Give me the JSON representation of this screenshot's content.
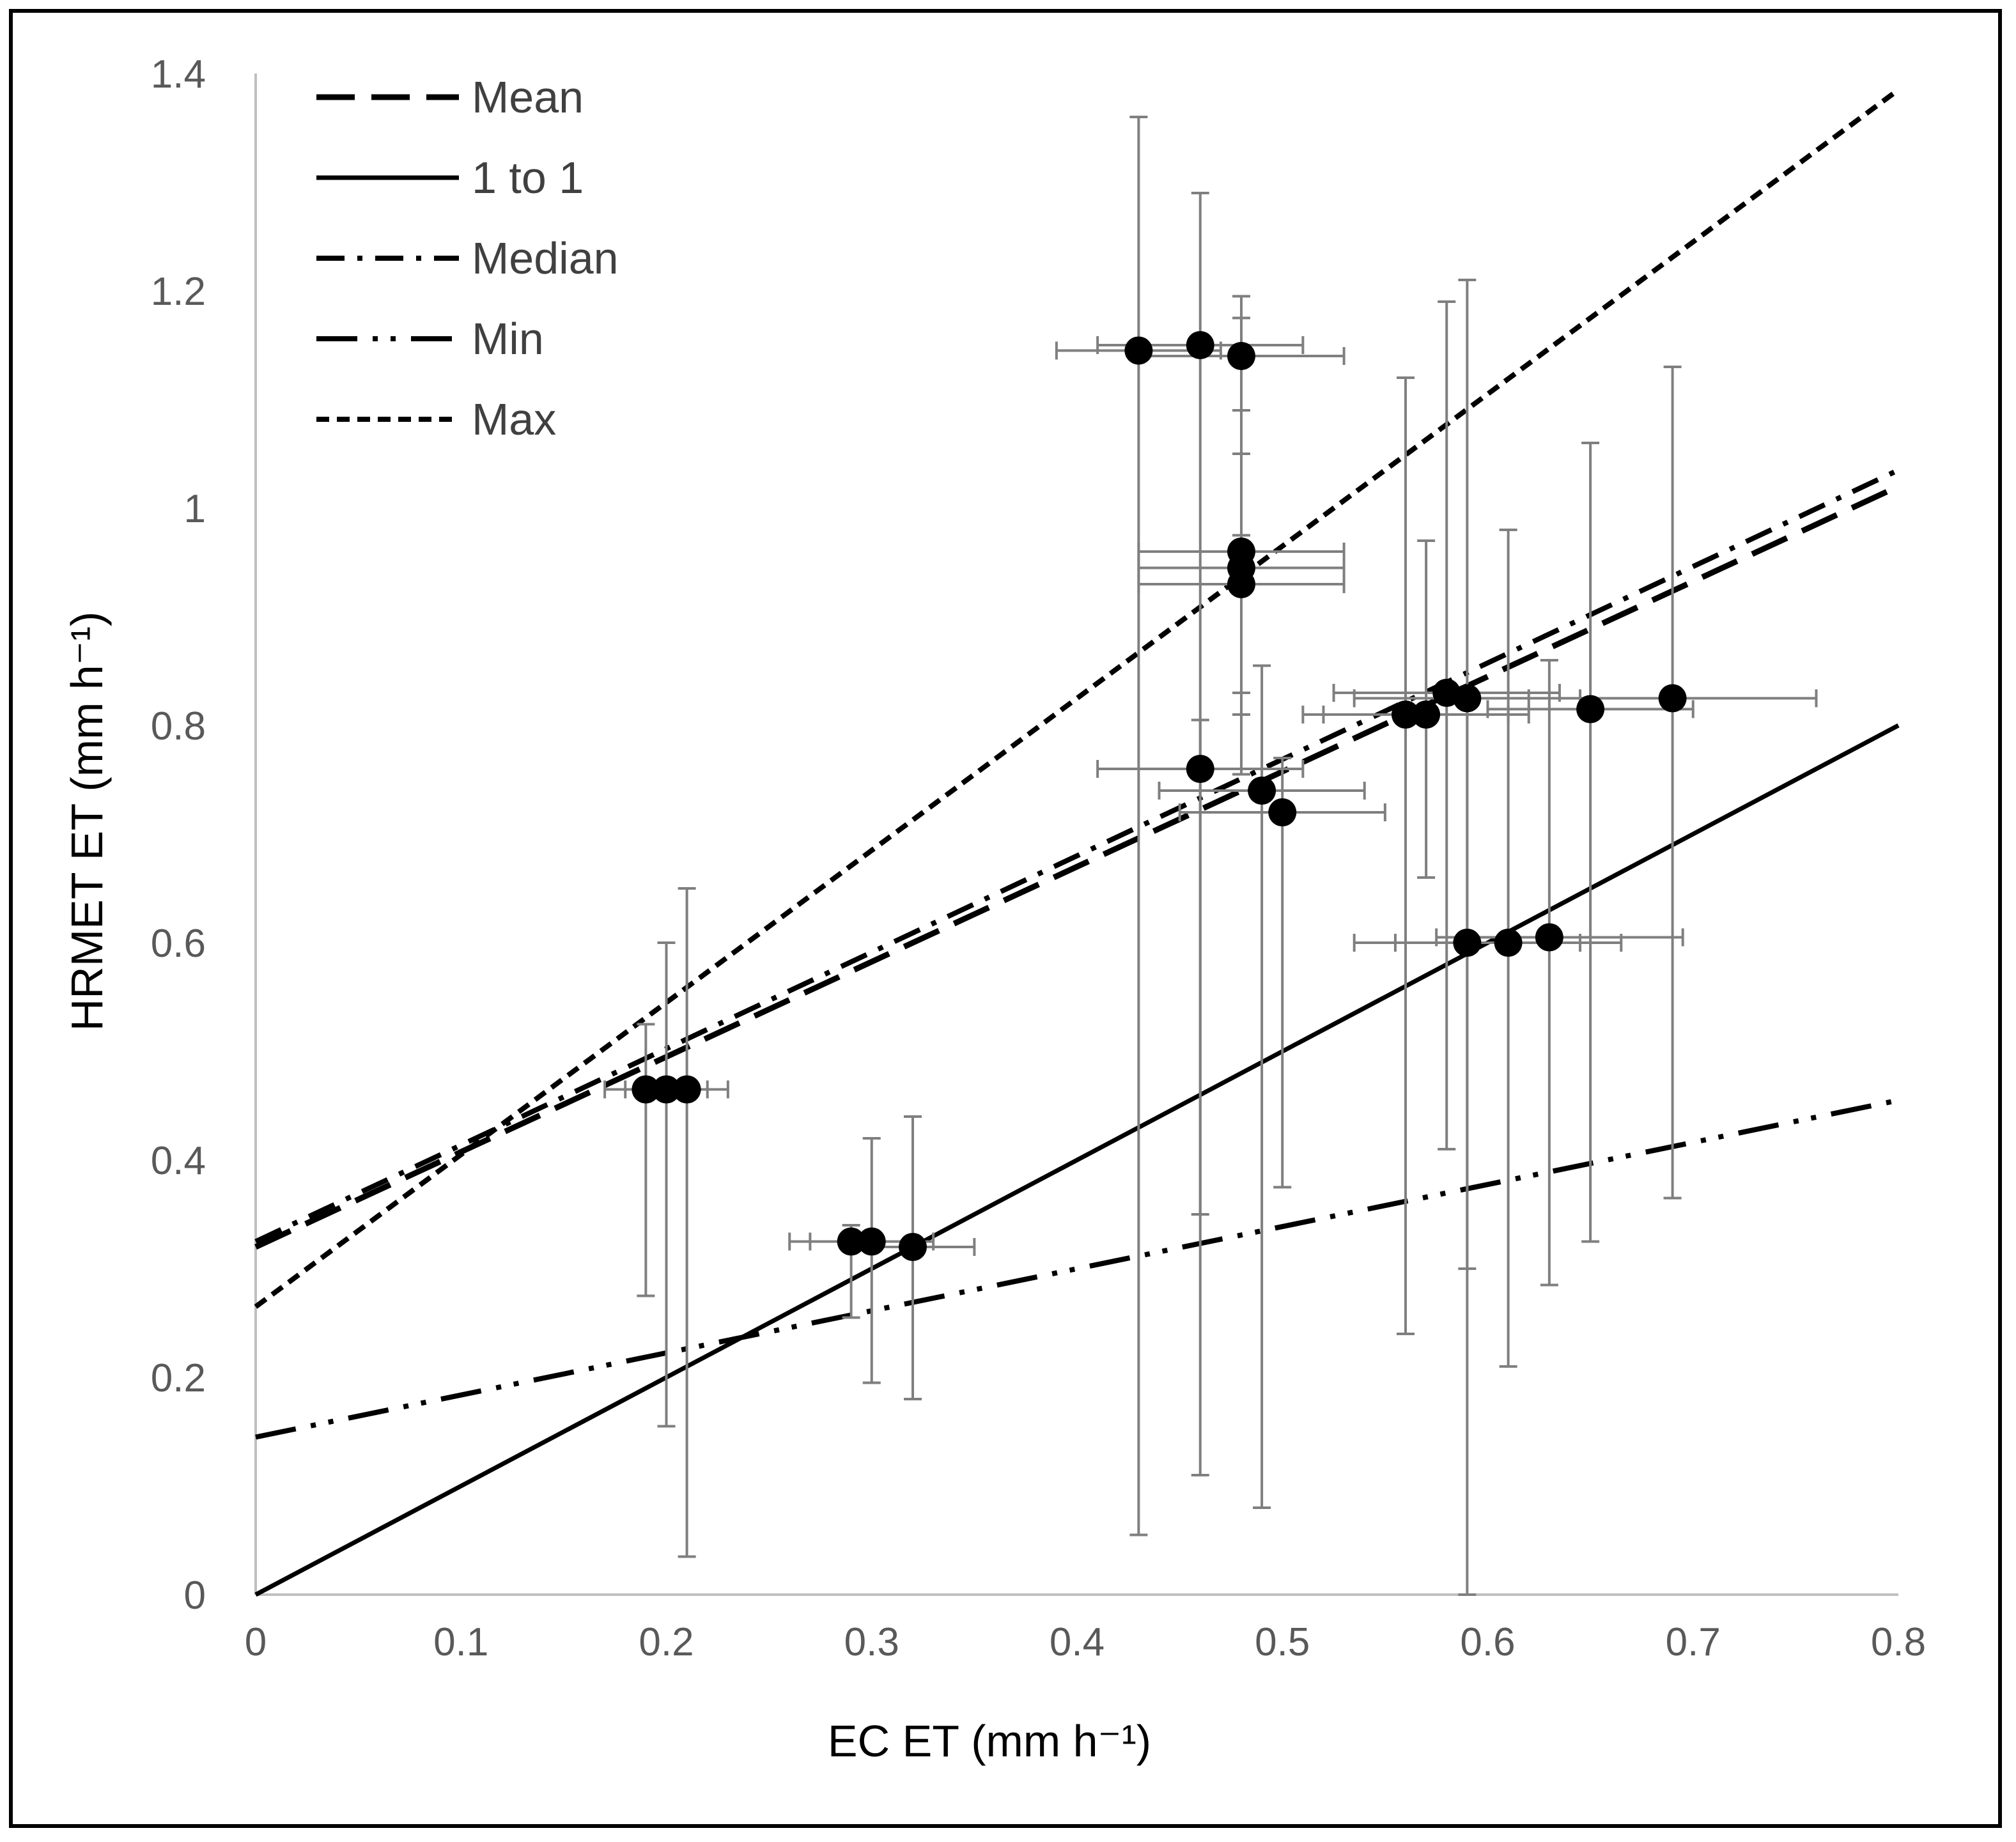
{
  "chart_data": {
    "type": "scatter",
    "title": "",
    "xlabel": "EC ET (mm h⁻¹)",
    "ylabel": "HRMET ET (mm h⁻¹)",
    "xlim": [
      0,
      0.8
    ],
    "ylim": [
      0,
      1.4
    ],
    "xticks": [
      0,
      0.1,
      0.2,
      0.3,
      0.4,
      0.5,
      0.6,
      0.7,
      0.8
    ],
    "xtick_labels": [
      "0",
      "0.1",
      "0.2",
      "0.3",
      "0.4",
      "0.5",
      "0.6",
      "0.7",
      "0.8"
    ],
    "yticks": [
      0,
      0.2,
      0.4,
      0.6,
      0.8,
      1.0,
      1.2,
      1.4
    ],
    "ytick_labels": [
      "0",
      "0.2",
      "0.4",
      "0.6",
      "0.8",
      "1",
      "1.2",
      "1.4"
    ],
    "grid": false,
    "legend_position": "top-left",
    "points": [
      {
        "x": 0.19,
        "y": 0.465,
        "xerr": [
          0.17,
          0.21
        ],
        "yerr": [
          0.275,
          0.525
        ]
      },
      {
        "x": 0.2,
        "y": 0.465,
        "xerr": [
          0.18,
          0.22
        ],
        "yerr": [
          0.155,
          0.6
        ]
      },
      {
        "x": 0.21,
        "y": 0.465,
        "xerr": [
          0.19,
          0.23
        ],
        "yerr": [
          0.035,
          0.65
        ]
      },
      {
        "x": 0.29,
        "y": 0.325,
        "xerr": [
          0.26,
          0.32
        ],
        "yerr": [
          0.255,
          0.34
        ]
      },
      {
        "x": 0.3,
        "y": 0.325,
        "xerr": [
          0.27,
          0.33
        ],
        "yerr": [
          0.195,
          0.42
        ]
      },
      {
        "x": 0.32,
        "y": 0.32,
        "xerr": [
          0.29,
          0.35
        ],
        "yerr": [
          0.18,
          0.44
        ]
      },
      {
        "x": 0.43,
        "y": 1.145,
        "xerr": [
          0.39,
          0.47
        ],
        "yerr": [
          0.055,
          1.36
        ]
      },
      {
        "x": 0.46,
        "y": 1.15,
        "xerr": [
          0.41,
          0.51
        ],
        "yerr": [
          0.11,
          1.29
        ]
      },
      {
        "x": 0.48,
        "y": 1.14,
        "xerr": [
          0.43,
          0.53
        ],
        "yerr": [
          1.09,
          1.195
        ]
      },
      {
        "x": 0.48,
        "y": 0.96,
        "xerr": [
          0.43,
          0.53
        ],
        "yerr": [
          0.83,
          1.175
        ]
      },
      {
        "x": 0.48,
        "y": 0.945,
        "xerr": [
          0.43,
          0.53
        ],
        "yerr": [
          0.81,
          1.05
        ]
      },
      {
        "x": 0.48,
        "y": 0.93,
        "xerr": [
          0.43,
          0.53
        ],
        "yerr": [
          0.755,
          0.975
        ]
      },
      {
        "x": 0.46,
        "y": 0.76,
        "xerr": [
          0.41,
          0.51
        ],
        "yerr": [
          0.35,
          0.805
        ]
      },
      {
        "x": 0.49,
        "y": 0.74,
        "xerr": [
          0.44,
          0.54
        ],
        "yerr": [
          0.08,
          0.855
        ]
      },
      {
        "x": 0.5,
        "y": 0.72,
        "xerr": [
          0.45,
          0.55
        ],
        "yerr": [
          0.375,
          0.77
        ]
      },
      {
        "x": 0.56,
        "y": 0.81,
        "xerr": [
          0.51,
          0.61
        ],
        "yerr": [
          0.24,
          1.12
        ]
      },
      {
        "x": 0.57,
        "y": 0.81,
        "xerr": [
          0.52,
          0.62
        ],
        "yerr": [
          0.66,
          0.97
        ]
      },
      {
        "x": 0.58,
        "y": 0.83,
        "xerr": [
          0.525,
          0.635
        ],
        "yerr": [
          0.41,
          1.19
        ]
      },
      {
        "x": 0.59,
        "y": 0.825,
        "xerr": [
          0.535,
          0.645
        ],
        "yerr": [
          0.3,
          1.21
        ]
      },
      {
        "x": 0.65,
        "y": 0.815,
        "xerr": [
          0.6,
          0.7
        ],
        "yerr": [
          0.325,
          1.06
        ]
      },
      {
        "x": 0.69,
        "y": 0.825,
        "xerr": [
          0.62,
          0.76
        ],
        "yerr": [
          0.365,
          1.13
        ]
      },
      {
        "x": 0.59,
        "y": 0.6,
        "xerr": [
          0.535,
          0.645
        ],
        "yerr": [
          0.0,
          0.81
        ]
      },
      {
        "x": 0.61,
        "y": 0.6,
        "xerr": [
          0.555,
          0.665
        ],
        "yerr": [
          0.21,
          0.98
        ]
      },
      {
        "x": 0.63,
        "y": 0.605,
        "xerr": [
          0.575,
          0.695
        ],
        "yerr": [
          0.285,
          0.86
        ]
      }
    ],
    "lines": [
      {
        "name": "Mean",
        "style": "long-dash",
        "x": [
          0,
          0.8
        ],
        "y": [
          0.32,
          1.02
        ]
      },
      {
        "name": "1 to 1",
        "style": "solid",
        "x": [
          0,
          0.8
        ],
        "y": [
          0,
          0.8
        ]
      },
      {
        "name": "Median",
        "style": "dash-dot",
        "x": [
          0,
          0.8
        ],
        "y": [
          0.325,
          1.035
        ]
      },
      {
        "name": "Min",
        "style": "dash-dot-dot",
        "x": [
          0,
          0.8
        ],
        "y": [
          0.145,
          0.455
        ]
      },
      {
        "name": "Max",
        "style": "short-dash",
        "x": [
          0,
          0.8
        ],
        "y": [
          0.265,
          1.385
        ]
      }
    ],
    "legend": [
      "Mean",
      "1 to 1",
      "Median",
      "Min",
      "Max"
    ]
  }
}
